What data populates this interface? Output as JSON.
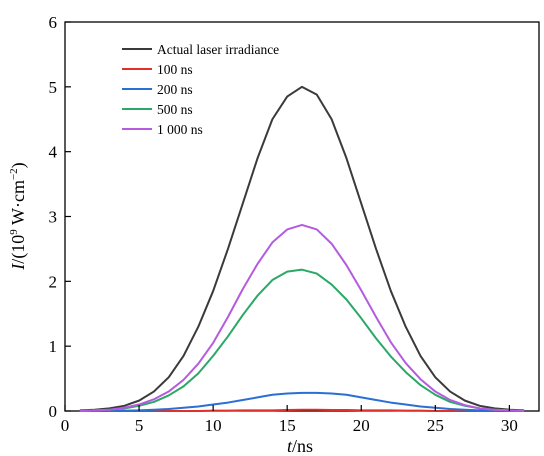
{
  "chart_data": {
    "type": "line",
    "xlabel": {
      "italic": "t",
      "rest": "/ns"
    },
    "ylabel": {
      "italic": "I",
      "pre": "/(10",
      "sup1": "9",
      "mid": " W·cm",
      "sup2": "−2",
      "post": ")"
    },
    "xlim": [
      0,
      32
    ],
    "ylim": [
      0,
      6
    ],
    "xticks": [
      0,
      5,
      10,
      15,
      20,
      25,
      30
    ],
    "yticks": [
      0,
      1,
      2,
      3,
      4,
      5,
      6
    ],
    "x": [
      1,
      2,
      3,
      4,
      5,
      6,
      7,
      8,
      9,
      10,
      11,
      12,
      13,
      14,
      15,
      16,
      17,
      18,
      19,
      20,
      21,
      22,
      23,
      24,
      25,
      26,
      27,
      28,
      29,
      30,
      31
    ],
    "legend_position": "top-left",
    "series": [
      {
        "name": "Actual laser irradiance",
        "color": "#3a3a3a",
        "values": [
          0.01,
          0.02,
          0.04,
          0.08,
          0.16,
          0.3,
          0.52,
          0.85,
          1.3,
          1.85,
          2.5,
          3.2,
          3.9,
          4.5,
          4.85,
          5.0,
          4.88,
          4.5,
          3.9,
          3.2,
          2.5,
          1.85,
          1.3,
          0.85,
          0.52,
          0.3,
          0.16,
          0.08,
          0.04,
          0.02,
          0.01
        ]
      },
      {
        "name": "100 ns",
        "color": "#e0302a",
        "values": [
          0,
          0,
          0,
          0,
          0,
          0,
          0,
          0,
          0,
          0.005,
          0.005,
          0.01,
          0.01,
          0.01,
          0.015,
          0.02,
          0.02,
          0.015,
          0.015,
          0.01,
          0.01,
          0.01,
          0.005,
          0.005,
          0,
          0,
          0,
          0,
          0,
          0,
          0
        ]
      },
      {
        "name": "200 ns",
        "color": "#2a6fd1",
        "values": [
          0,
          0,
          0,
          0.005,
          0.01,
          0.02,
          0.03,
          0.05,
          0.07,
          0.1,
          0.13,
          0.17,
          0.21,
          0.25,
          0.27,
          0.28,
          0.28,
          0.27,
          0.25,
          0.21,
          0.17,
          0.13,
          0.1,
          0.07,
          0.05,
          0.03,
          0.02,
          0.01,
          0.005,
          0,
          0
        ]
      },
      {
        "name": "500 ns",
        "color": "#2aa866",
        "values": [
          0,
          0.01,
          0.02,
          0.04,
          0.08,
          0.14,
          0.24,
          0.38,
          0.58,
          0.85,
          1.15,
          1.48,
          1.78,
          2.02,
          2.15,
          2.18,
          2.12,
          1.95,
          1.72,
          1.43,
          1.12,
          0.84,
          0.6,
          0.4,
          0.25,
          0.14,
          0.08,
          0.04,
          0.02,
          0.01,
          0
        ]
      },
      {
        "name": "1 000 ns",
        "color": "#b45be0",
        "values": [
          0,
          0.01,
          0.02,
          0.05,
          0.1,
          0.18,
          0.3,
          0.48,
          0.73,
          1.05,
          1.45,
          1.88,
          2.27,
          2.6,
          2.8,
          2.87,
          2.8,
          2.58,
          2.25,
          1.86,
          1.45,
          1.06,
          0.74,
          0.49,
          0.3,
          0.17,
          0.09,
          0.04,
          0.02,
          0.01,
          0
        ]
      }
    ]
  }
}
